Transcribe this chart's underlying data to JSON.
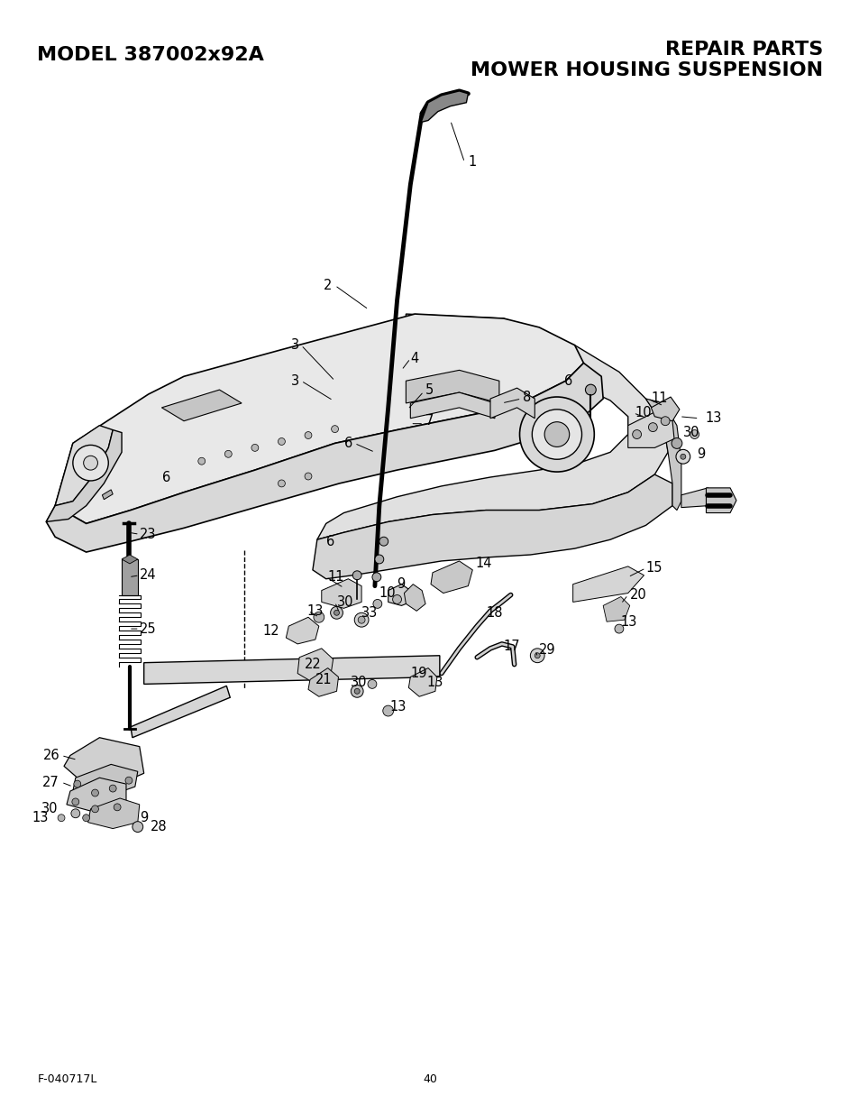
{
  "title_left": "MODEL 387002x92A",
  "title_right_line1": "REPAIR PARTS",
  "title_right_line2": "MOWER HOUSING SUSPENSION",
  "footer_left": "F-040717L",
  "footer_center": "40",
  "background_color": "#ffffff",
  "title_fontsize": 16,
  "footer_fontsize": 9
}
